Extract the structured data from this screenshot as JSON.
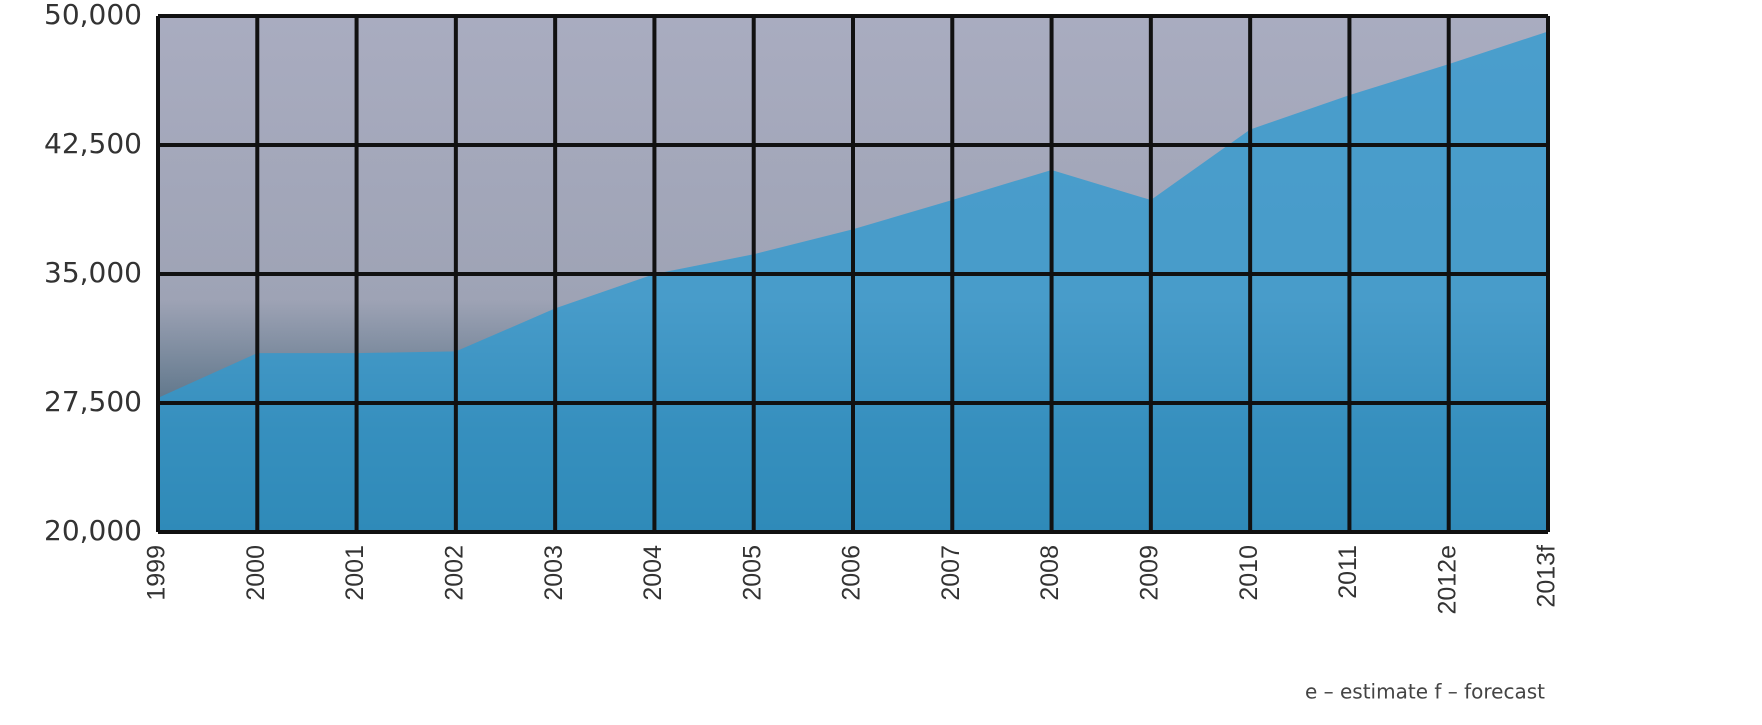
{
  "chart_data": {
    "type": "area",
    "categories": [
      "1999",
      "2000",
      "2001",
      "2002",
      "2003",
      "2004",
      "2005",
      "2006",
      "2007",
      "2008",
      "2009",
      "2010",
      "2011",
      "2012e",
      "2013f"
    ],
    "values": [
      27800,
      30400,
      30400,
      30500,
      33000,
      35000,
      36150,
      37600,
      39300,
      41050,
      39300,
      43400,
      45400,
      47200,
      49100
    ],
    "color": "#2f9ad0",
    "ylim": [
      20000,
      50000
    ],
    "yticks": [
      {
        "value": 20000,
        "label": "20,000"
      },
      {
        "value": 27500,
        "label": "27,500"
      },
      {
        "value": 35000,
        "label": "35,000"
      },
      {
        "value": 42500,
        "label": "42,500"
      },
      {
        "value": 50000,
        "label": "50,000"
      }
    ],
    "grid": true,
    "annotation": "e – estimate  f – forecast"
  }
}
